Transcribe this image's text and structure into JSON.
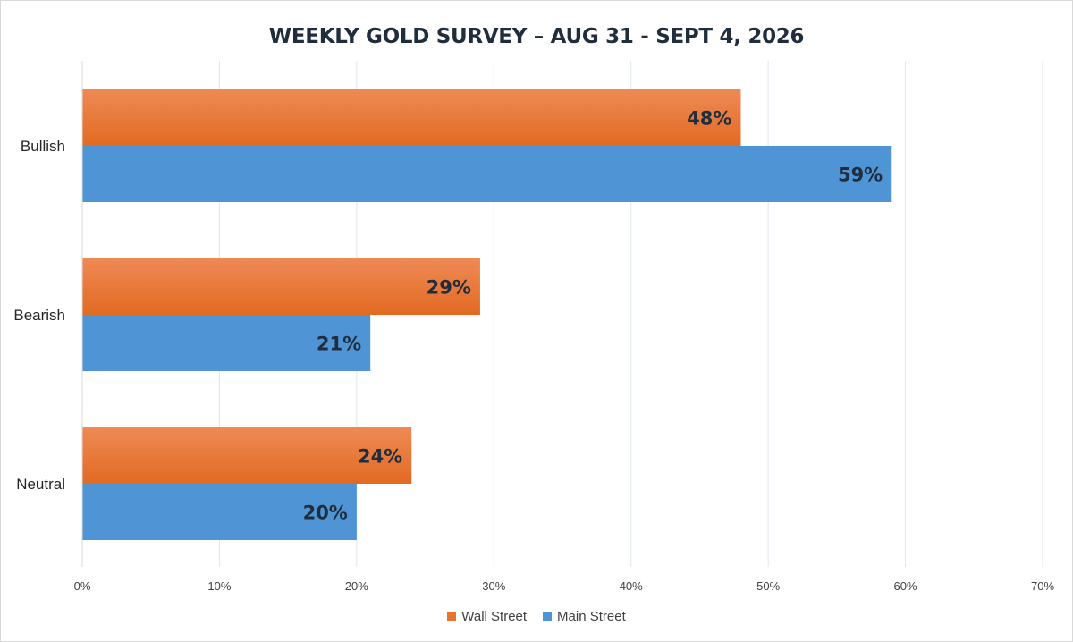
{
  "chart_data": {
    "type": "bar",
    "orientation": "horizontal",
    "title": "WEEKLY GOLD SURVEY – AUG 31 - SEPT 4, 2026",
    "categories": [
      "Bullish",
      "Bearish",
      "Neutral"
    ],
    "series": [
      {
        "name": "Wall Street",
        "values": [
          48,
          29,
          24
        ],
        "color": "#e8722f",
        "labels": [
          "48%",
          "29%",
          "24%"
        ]
      },
      {
        "name": "Main Street",
        "values": [
          59,
          21,
          20
        ],
        "color": "#4f95d6",
        "labels": [
          "59%",
          "21%",
          "20%"
        ]
      }
    ],
    "x_ticks": [
      "0%",
      "10%",
      "20%",
      "30%",
      "40%",
      "50%",
      "60%",
      "70%"
    ],
    "xlim": [
      0,
      70
    ],
    "grid": true,
    "legend_position": "bottom"
  }
}
